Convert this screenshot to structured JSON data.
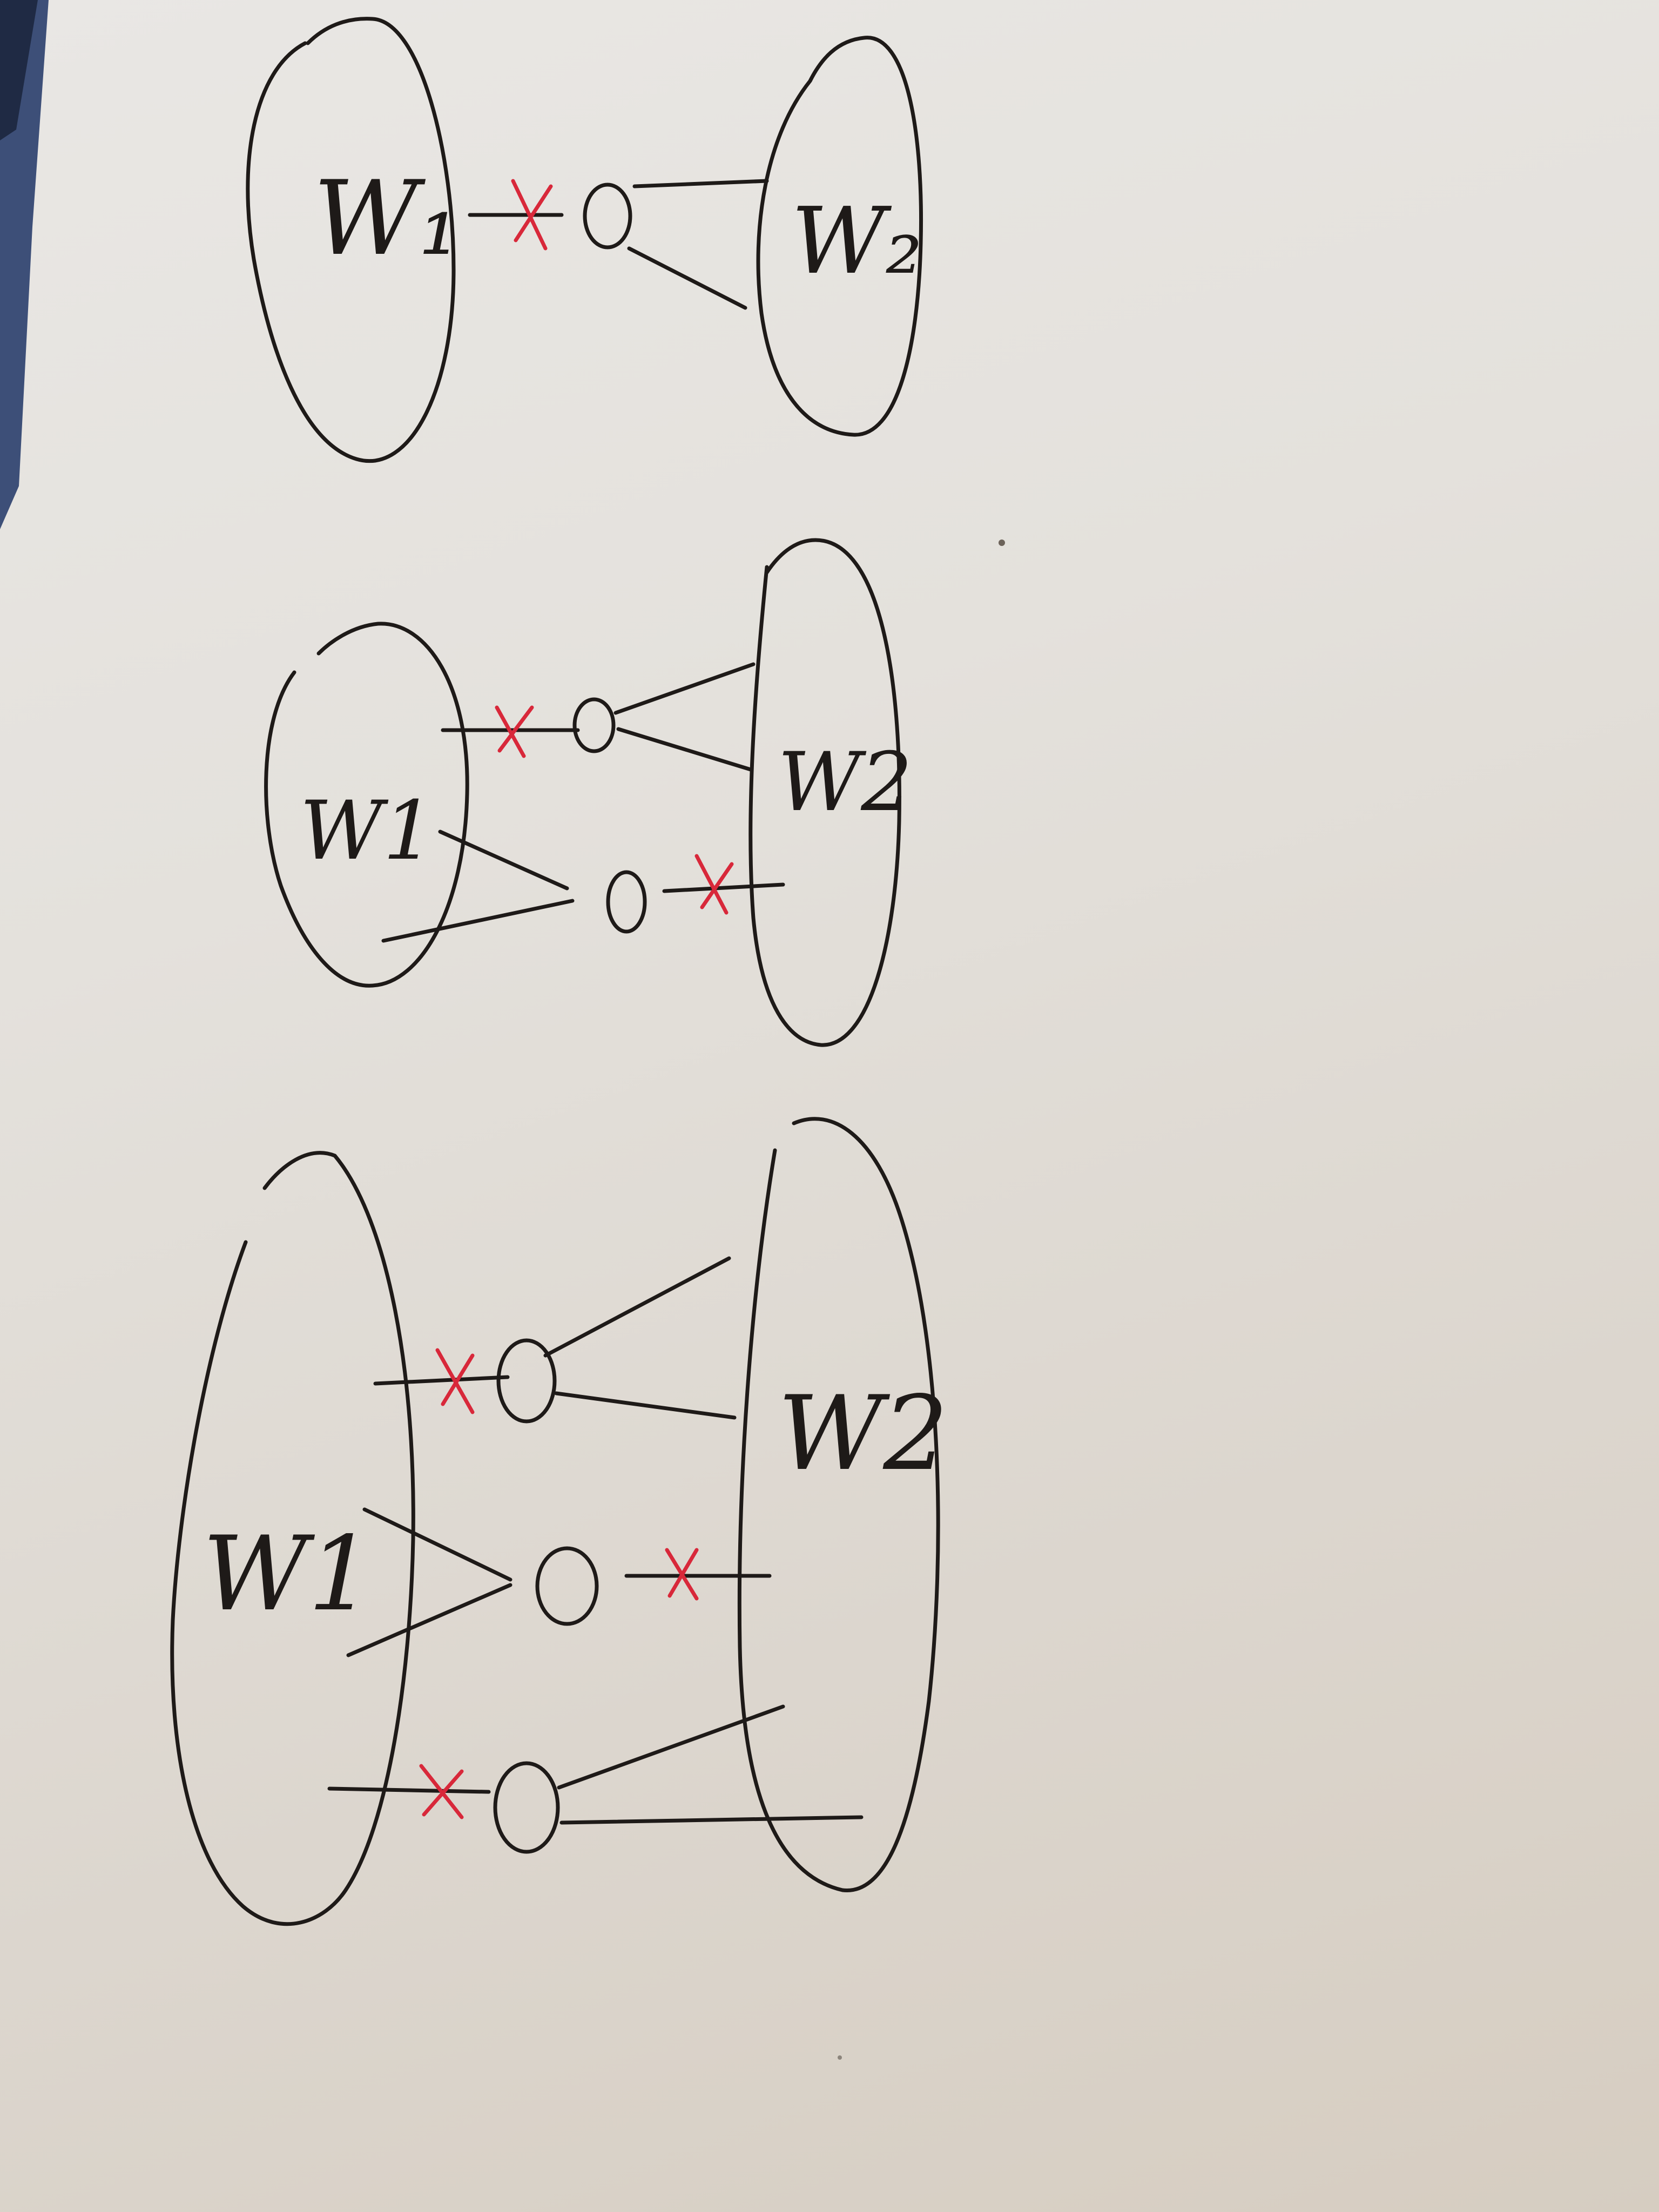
{
  "diagrams": [
    {
      "left_label": "W₁",
      "right_label": "W₂"
    },
    {
      "left_label": "W1",
      "right_label": "W2"
    },
    {
      "left_label": "W1",
      "right_label": "W2"
    }
  ],
  "colors": {
    "ink": "#1e1a18",
    "cut_mark": "#d8283a",
    "paper": "#e6e3df"
  }
}
